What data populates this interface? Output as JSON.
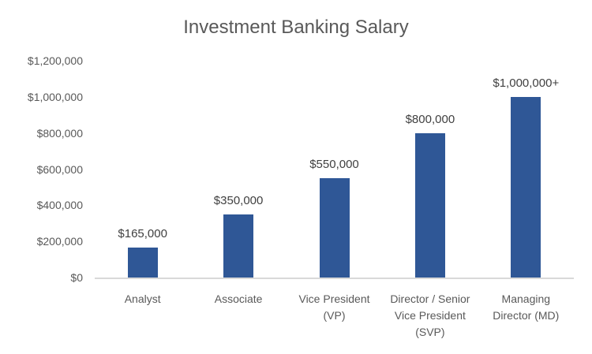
{
  "chart_data": {
    "type": "bar",
    "title": "Investment Banking Salary",
    "categories": [
      "Analyst",
      "Associate",
      "Vice President (VP)",
      "Director / Senior Vice President (SVP)",
      "Managing Director (MD)"
    ],
    "values": [
      165000,
      350000,
      550000,
      800000,
      1000000
    ],
    "data_labels": [
      "$165,000",
      "$350,000",
      "$550,000",
      "$800,000",
      "$1,000,000+"
    ],
    "y_ticks": [
      {
        "value": 0,
        "label": "$0"
      },
      {
        "value": 200000,
        "label": "$200,000"
      },
      {
        "value": 400000,
        "label": "$400,000"
      },
      {
        "value": 600000,
        "label": "$600,000"
      },
      {
        "value": 800000,
        "label": "$800,000"
      },
      {
        "value": 1000000,
        "label": "$1,000,000"
      },
      {
        "value": 1200000,
        "label": "$1,200,000"
      }
    ],
    "ylim": [
      0,
      1200000
    ],
    "xlabel": "",
    "ylabel": "",
    "grid": false,
    "legend": false,
    "colors": {
      "bar": "#2F5796",
      "title_text": "#595959",
      "axis_text": "#595959",
      "data_label_text": "#404040",
      "axis_line": "#D9D9D9"
    }
  }
}
